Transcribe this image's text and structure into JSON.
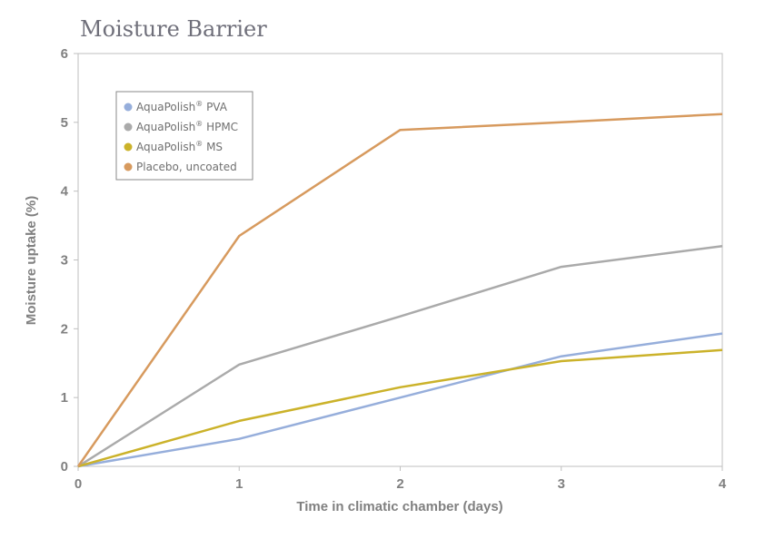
{
  "chart_data": {
    "type": "line",
    "title": "Moisture Barrier",
    "xlabel": "Time in climatic chamber (days)",
    "ylabel": "Moisture uptake (%)",
    "x": [
      0,
      1,
      2,
      3,
      4
    ],
    "xlim": [
      0,
      4
    ],
    "ylim": [
      0,
      6
    ],
    "xticks": [
      "0",
      "1",
      "2",
      "3",
      "4"
    ],
    "yticks": [
      "0",
      "1",
      "2",
      "3",
      "4",
      "5",
      "6"
    ],
    "grid": false,
    "legend_position": "top-left",
    "series": [
      {
        "name": "AquaPolish",
        "name_sup": "®",
        "name_suffix": " PVA",
        "color": "#96aedb",
        "values": [
          0,
          0.4,
          1.0,
          1.6,
          1.93
        ]
      },
      {
        "name": "AquaPolish",
        "name_sup": "®",
        "name_suffix": " HPMC",
        "color": "#aaaaaa",
        "values": [
          0,
          1.48,
          2.18,
          2.9,
          3.2
        ]
      },
      {
        "name": "AquaPolish",
        "name_sup": "®",
        "name_suffix": " MS",
        "color": "#cbb22a",
        "values": [
          0,
          0.66,
          1.15,
          1.53,
          1.69
        ]
      },
      {
        "name": "Placebo, uncoated",
        "name_sup": "",
        "name_suffix": "",
        "color": "#d79a5e",
        "values": [
          0,
          3.35,
          4.89,
          5.0,
          5.12
        ]
      }
    ]
  }
}
